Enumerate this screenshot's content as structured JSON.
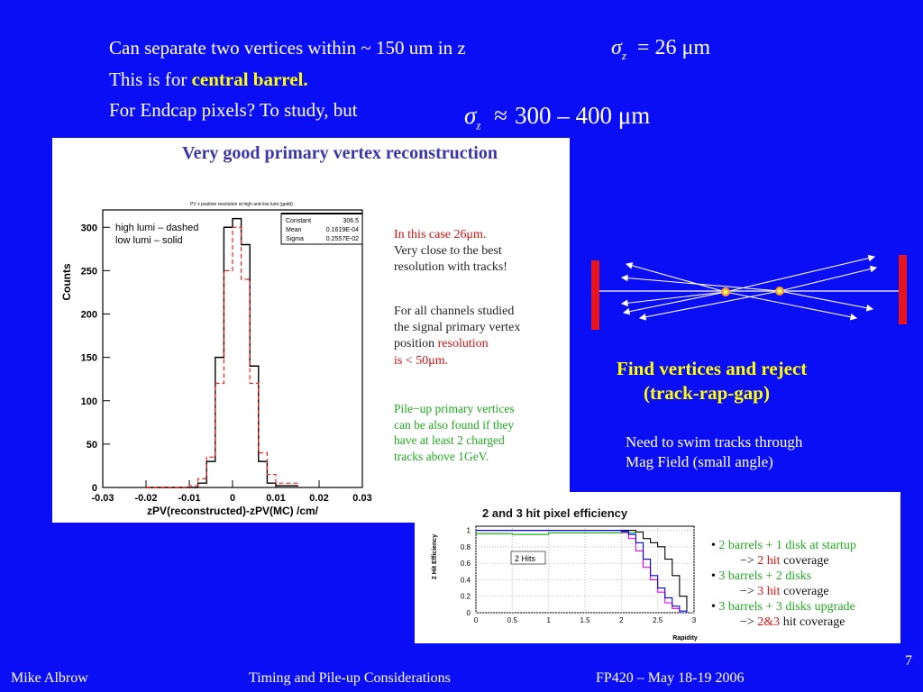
{
  "header": {
    "line1": "Can separate two vertices within ~ 150 um in z",
    "line2_prefix": "This is for ",
    "line2_highlight": "central barrel.",
    "line3": "For Endcap pixels? To study, but",
    "eq1": {
      "symbol": "σ",
      "sub": "z",
      "relation": "=",
      "value": "26 μm"
    },
    "eq2": {
      "symbol": "σ",
      "sub": "z",
      "relation": "≈",
      "value": "300 – 400 μm"
    }
  },
  "figure1": {
    "title": "Very good primary vertex reconstruction",
    "plot_caption": "PV z position resolution at high and low lumi (gpdd)",
    "legend_dashed": "high lumi – dashed",
    "legend_solid": "low lumi – solid",
    "stats": [
      {
        "label": "Constant",
        "value": "306.5"
      },
      {
        "label": "Mean",
        "value": "0.1619E-04"
      },
      {
        "label": "Sigma",
        "value": "0.2557E-02"
      }
    ],
    "notes": {
      "p1": [
        "In this case 26μm.",
        "Very close to the best",
        "resolution with tracks!"
      ],
      "p2_lines": [
        "For all channels studied",
        "the signal primary vertex"
      ],
      "p2_pos": "position ",
      "p2_res": "resolution",
      "p2_last": "is < 50μm.",
      "p3": [
        "Pile−up primary vertices",
        "can be also found if they",
        "have at least 2 charged",
        "tracks above 1GeV."
      ]
    }
  },
  "diagram": {
    "caption_l1": "Find vertices and reject",
    "caption_l2": "(track-rap-gap)",
    "note_l1": "Need to swim tracks through",
    "note_l2": "Mag Field (small angle)"
  },
  "figure2": {
    "title": "2 and 3 hit pixel efficiency",
    "label_2hits": "2 Hits",
    "bullets": [
      {
        "main": "2 barrels + 1 disk at startup",
        "sub_pre": "−> ",
        "sub_hit": "2 hit",
        "sub_post": " coverage"
      },
      {
        "main": "3 barrels + 2 disks",
        "sub_pre": "−> ",
        "sub_hit": "3 hit",
        "sub_post": " coverage"
      },
      {
        "main": "3 barrels + 3 disks upgrade",
        "sub_pre": "−> ",
        "sub_hit": "2&3",
        "sub_post": " hit coverage"
      }
    ]
  },
  "chart_data": [
    {
      "type": "line",
      "title": "PV z position resolution at high and low lumi (gpdd)",
      "xlabel": "zPV(reconstructed)-zPV(MC) /cm/",
      "ylabel": "Counts",
      "xlim": [
        -0.03,
        0.03
      ],
      "ylim": [
        0,
        320
      ],
      "x_ticks": [
        "-0.03",
        "-0.02",
        "-0.01",
        "0",
        "0.01",
        "0.02",
        "0.03"
      ],
      "y_ticks": [
        "0",
        "50",
        "100",
        "150",
        "200",
        "250",
        "300"
      ],
      "series": [
        {
          "name": "low lumi – solid",
          "color": "#000000",
          "x": [
            -0.02,
            -0.008,
            -0.006,
            -0.004,
            -0.002,
            0.0,
            0.002,
            0.004,
            0.006,
            0.008,
            0.01,
            0.015
          ],
          "y": [
            0,
            5,
            30,
            150,
            300,
            310,
            280,
            140,
            30,
            5,
            2,
            0
          ]
        },
        {
          "name": "high lumi – dashed",
          "color": "#ff0000",
          "x": [
            -0.02,
            -0.01,
            -0.008,
            -0.006,
            -0.004,
            -0.002,
            0.0,
            0.002,
            0.004,
            0.006,
            0.008,
            0.01,
            0.015
          ],
          "y": [
            0,
            2,
            10,
            35,
            120,
            250,
            300,
            240,
            120,
            40,
            15,
            5,
            0
          ]
        }
      ]
    },
    {
      "type": "line",
      "title": "2 and 3 hit pixel efficiency",
      "xlabel": "Rapidity",
      "ylabel": "2 Hit Efficiency",
      "xlim": [
        0,
        3
      ],
      "ylim": [
        0,
        1.05
      ],
      "x_ticks": [
        "0",
        "0.5",
        "1",
        "1.5",
        "2",
        "2.5",
        "3"
      ],
      "y_ticks": [
        "0",
        "0.2",
        "0.4",
        "0.6",
        "0.8",
        "1"
      ],
      "series": [
        {
          "color": "#00aa00",
          "x": [
            0,
            0.5,
            1.0,
            1.5,
            2.0,
            2.2
          ],
          "y": [
            0.96,
            0.95,
            0.97,
            0.97,
            0.97,
            0.96
          ]
        },
        {
          "color": "#000000",
          "x": [
            0,
            1.5,
            2.0,
            2.2,
            2.3,
            2.4,
            2.5,
            2.6,
            2.7,
            2.8,
            2.9
          ],
          "y": [
            1.0,
            1.0,
            1.0,
            0.98,
            0.9,
            0.85,
            0.8,
            0.65,
            0.45,
            0.2,
            0.02
          ]
        },
        {
          "color": "#ff00ff",
          "x": [
            0,
            1.5,
            2.0,
            2.1,
            2.2,
            2.3,
            2.4,
            2.5,
            2.6,
            2.7,
            2.8
          ],
          "y": [
            1.0,
            1.0,
            0.98,
            0.9,
            0.75,
            0.55,
            0.4,
            0.25,
            0.12,
            0.05,
            0.0
          ]
        },
        {
          "color": "#0000ff",
          "x": [
            0,
            1.5,
            2.0,
            2.1,
            2.2,
            2.3,
            2.4,
            2.5,
            2.6,
            2.7,
            2.8,
            2.9
          ],
          "y": [
            1.0,
            1.0,
            0.99,
            0.95,
            0.85,
            0.65,
            0.45,
            0.3,
            0.18,
            0.08,
            0.02,
            0.0
          ]
        }
      ]
    }
  ],
  "footer": {
    "author": "Mike Albrow",
    "title": "Timing and Pile-up Considerations",
    "event": "FP420 – May 18-19 2006",
    "page": "7"
  },
  "colors": {
    "background": "#0a0ef5",
    "highlight": "#ffff00",
    "detector_red": "#e8141c"
  }
}
